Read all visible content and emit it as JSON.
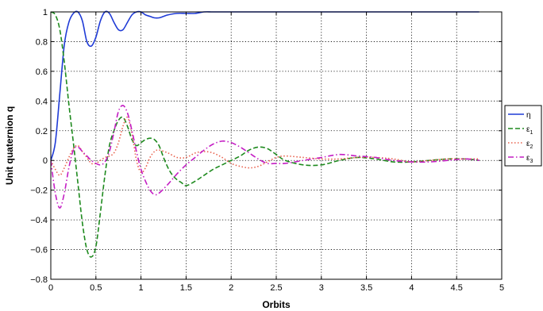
{
  "chart_data": {
    "type": "line",
    "xlabel": "Orbits",
    "ylabel": "Unit quaternion q",
    "xlim": [
      0,
      5
    ],
    "ylim": [
      -0.8,
      1
    ],
    "grid": true,
    "legend_position": "right",
    "x_ticks": [
      "0",
      "0.5",
      "1",
      "1.5",
      "2",
      "2.5",
      "3",
      "3.5",
      "4",
      "4.5",
      "5"
    ],
    "y_ticks": [
      "-0.8",
      "-0.6",
      "-0.4",
      "-0.2",
      "0",
      "0.2",
      "0.4",
      "0.6",
      "0.8",
      "1"
    ],
    "series": [
      {
        "name": "η",
        "legend_main": "η",
        "legend_sub": "",
        "color": "#1f3bd6",
        "style": "solid",
        "x": [
          0,
          0.05,
          0.1,
          0.15,
          0.2,
          0.25,
          0.3,
          0.35,
          0.4,
          0.45,
          0.5,
          0.55,
          0.6,
          0.65,
          0.7,
          0.75,
          0.8,
          0.85,
          0.9,
          0.95,
          1.0,
          1.05,
          1.1,
          1.15,
          1.2,
          1.25,
          1.3,
          1.4,
          1.5,
          1.6,
          1.7,
          1.8,
          2.0,
          2.2,
          2.5,
          3.0,
          4.0,
          4.75
        ],
        "y": [
          0,
          0.12,
          0.45,
          0.78,
          0.93,
          0.99,
          1.0,
          0.94,
          0.8,
          0.77,
          0.83,
          0.94,
          1.0,
          0.99,
          0.93,
          0.88,
          0.88,
          0.93,
          0.98,
          1.0,
          1.0,
          0.98,
          0.97,
          0.96,
          0.96,
          0.97,
          0.98,
          0.99,
          0.99,
          0.99,
          1.0,
          1.0,
          1.0,
          1.0,
          1.0,
          1.0,
          1.0,
          1.0
        ]
      },
      {
        "name": "ε1",
        "legend_main": "ε",
        "legend_sub": "1",
        "color": "#1e8a1e",
        "style": "dashed",
        "x": [
          0,
          0.05,
          0.1,
          0.15,
          0.2,
          0.25,
          0.3,
          0.35,
          0.4,
          0.45,
          0.5,
          0.55,
          0.6,
          0.65,
          0.7,
          0.75,
          0.8,
          0.85,
          0.9,
          0.95,
          1.0,
          1.05,
          1.1,
          1.15,
          1.2,
          1.25,
          1.3,
          1.35,
          1.4,
          1.45,
          1.5,
          1.6,
          1.7,
          1.8,
          1.9,
          2.0,
          2.1,
          2.2,
          2.3,
          2.4,
          2.5,
          2.6,
          2.8,
          3.0,
          3.2,
          3.4,
          3.6,
          3.8,
          4.0,
          4.2,
          4.4,
          4.6,
          4.75
        ],
        "y": [
          1.0,
          0.98,
          0.88,
          0.66,
          0.38,
          0.12,
          -0.15,
          -0.42,
          -0.6,
          -0.65,
          -0.58,
          -0.35,
          -0.1,
          0.1,
          0.2,
          0.27,
          0.29,
          0.23,
          0.14,
          0.1,
          0.12,
          0.14,
          0.15,
          0.14,
          0.1,
          0.02,
          -0.05,
          -0.1,
          -0.13,
          -0.15,
          -0.17,
          -0.14,
          -0.1,
          -0.06,
          -0.03,
          0.0,
          0.03,
          0.07,
          0.09,
          0.08,
          0.04,
          0.0,
          -0.03,
          -0.03,
          0.0,
          0.02,
          0.01,
          -0.01,
          -0.01,
          0.0,
          0.01,
          0.01,
          0.0
        ]
      },
      {
        "name": "ε2",
        "legend_main": "ε",
        "legend_sub": "2",
        "color": "#e8604c",
        "style": "dotted",
        "x": [
          0,
          0.05,
          0.1,
          0.15,
          0.2,
          0.25,
          0.3,
          0.35,
          0.4,
          0.45,
          0.5,
          0.55,
          0.6,
          0.65,
          0.7,
          0.75,
          0.8,
          0.85,
          0.9,
          0.95,
          1.0,
          1.05,
          1.1,
          1.15,
          1.2,
          1.3,
          1.4,
          1.5,
          1.6,
          1.7,
          1.8,
          1.9,
          2.0,
          2.1,
          2.2,
          2.3,
          2.4,
          2.5,
          2.6,
          2.8,
          3.0,
          3.2,
          3.4,
          3.6,
          3.8,
          4.0,
          4.2,
          4.4,
          4.6,
          4.75
        ],
        "y": [
          0,
          -0.06,
          -0.1,
          -0.05,
          0.02,
          0.08,
          0.1,
          0.06,
          0.02,
          -0.02,
          -0.02,
          0.0,
          0.02,
          0.03,
          0.05,
          0.12,
          0.23,
          0.29,
          0.18,
          0.0,
          -0.08,
          -0.05,
          0.02,
          0.06,
          0.07,
          0.05,
          0.02,
          0.02,
          0.05,
          0.06,
          0.05,
          0.02,
          -0.02,
          -0.04,
          -0.05,
          -0.04,
          -0.01,
          0.02,
          0.03,
          0.02,
          0.01,
          0.01,
          0.02,
          0.02,
          0.01,
          -0.01,
          0.0,
          0.01,
          0.01,
          0.01
        ]
      },
      {
        "name": "ε3",
        "legend_main": "ε",
        "legend_sub": "3",
        "color": "#c41ec4",
        "style": "dashdot",
        "x": [
          0,
          0.05,
          0.1,
          0.15,
          0.2,
          0.25,
          0.3,
          0.35,
          0.4,
          0.45,
          0.5,
          0.55,
          0.6,
          0.65,
          0.7,
          0.75,
          0.8,
          0.85,
          0.9,
          0.95,
          1.0,
          1.05,
          1.1,
          1.15,
          1.2,
          1.3,
          1.4,
          1.5,
          1.6,
          1.7,
          1.8,
          1.9,
          2.0,
          2.1,
          2.2,
          2.3,
          2.4,
          2.5,
          2.6,
          2.8,
          3.0,
          3.2,
          3.4,
          3.6,
          3.8,
          4.0,
          4.2,
          4.4,
          4.6,
          4.75
        ],
        "y": [
          0,
          -0.22,
          -0.32,
          -0.22,
          -0.05,
          0.07,
          0.09,
          0.06,
          0.03,
          0.0,
          -0.02,
          -0.03,
          -0.01,
          0.06,
          0.19,
          0.33,
          0.37,
          0.32,
          0.2,
          0.06,
          -0.06,
          -0.14,
          -0.2,
          -0.23,
          -0.22,
          -0.16,
          -0.09,
          -0.03,
          0.02,
          0.07,
          0.11,
          0.13,
          0.12,
          0.09,
          0.05,
          0.01,
          -0.02,
          -0.02,
          -0.02,
          0.0,
          0.02,
          0.04,
          0.03,
          0.02,
          0.0,
          -0.01,
          -0.01,
          0.0,
          0.01,
          0.0
        ]
      }
    ]
  }
}
